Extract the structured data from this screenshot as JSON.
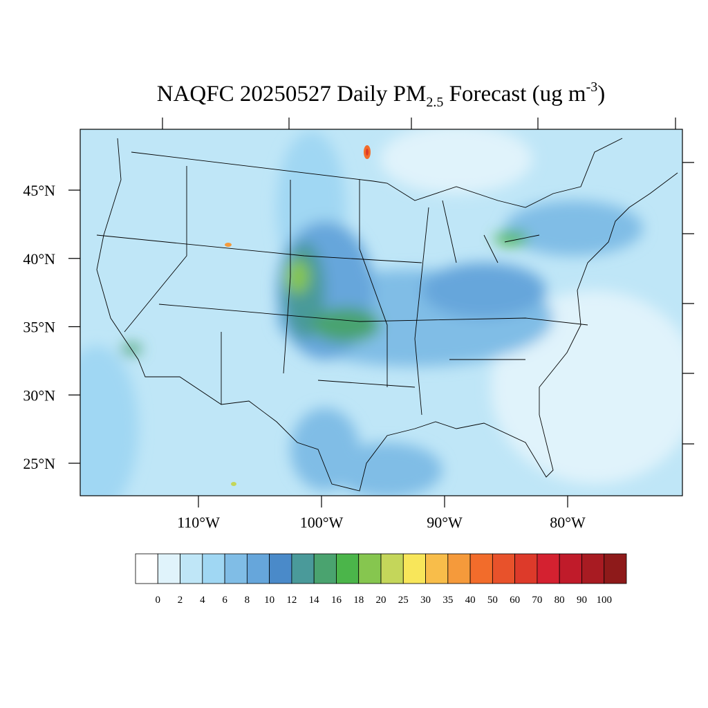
{
  "header": {
    "title": {
      "main": "NAQFC 20250527 Daily PM",
      "sub": "2.5",
      "mid": " Forecast (ug m",
      "sup": "-3",
      "end": ")"
    }
  },
  "map": {
    "lat_labels": [
      "45°N",
      "40°N",
      "35°N",
      "30°N",
      "25°N"
    ],
    "lon_labels": [
      "110°W",
      "100°W",
      "90°W",
      "80°W"
    ]
  },
  "colorbar": {
    "colors": [
      "#ffffff",
      "#e0f3fb",
      "#bfe6f7",
      "#a0d7f3",
      "#80bde6",
      "#66a6db",
      "#4a8ac9",
      "#4a9a9a",
      "#4aa36f",
      "#4bb54a",
      "#86c64f",
      "#c4d65a",
      "#f8e65a",
      "#f8bd4a",
      "#f59a3b",
      "#f26c2b",
      "#e8522b",
      "#dd3a2a",
      "#d42130",
      "#c01b2a",
      "#a81b22",
      "#8e1a1a"
    ],
    "labels": [
      "0",
      "2",
      "4",
      "6",
      "8",
      "10",
      "12",
      "14",
      "16",
      "18",
      "20",
      "25",
      "30",
      "35",
      "40",
      "50",
      "60",
      "70",
      "80",
      "90",
      "100"
    ]
  }
}
